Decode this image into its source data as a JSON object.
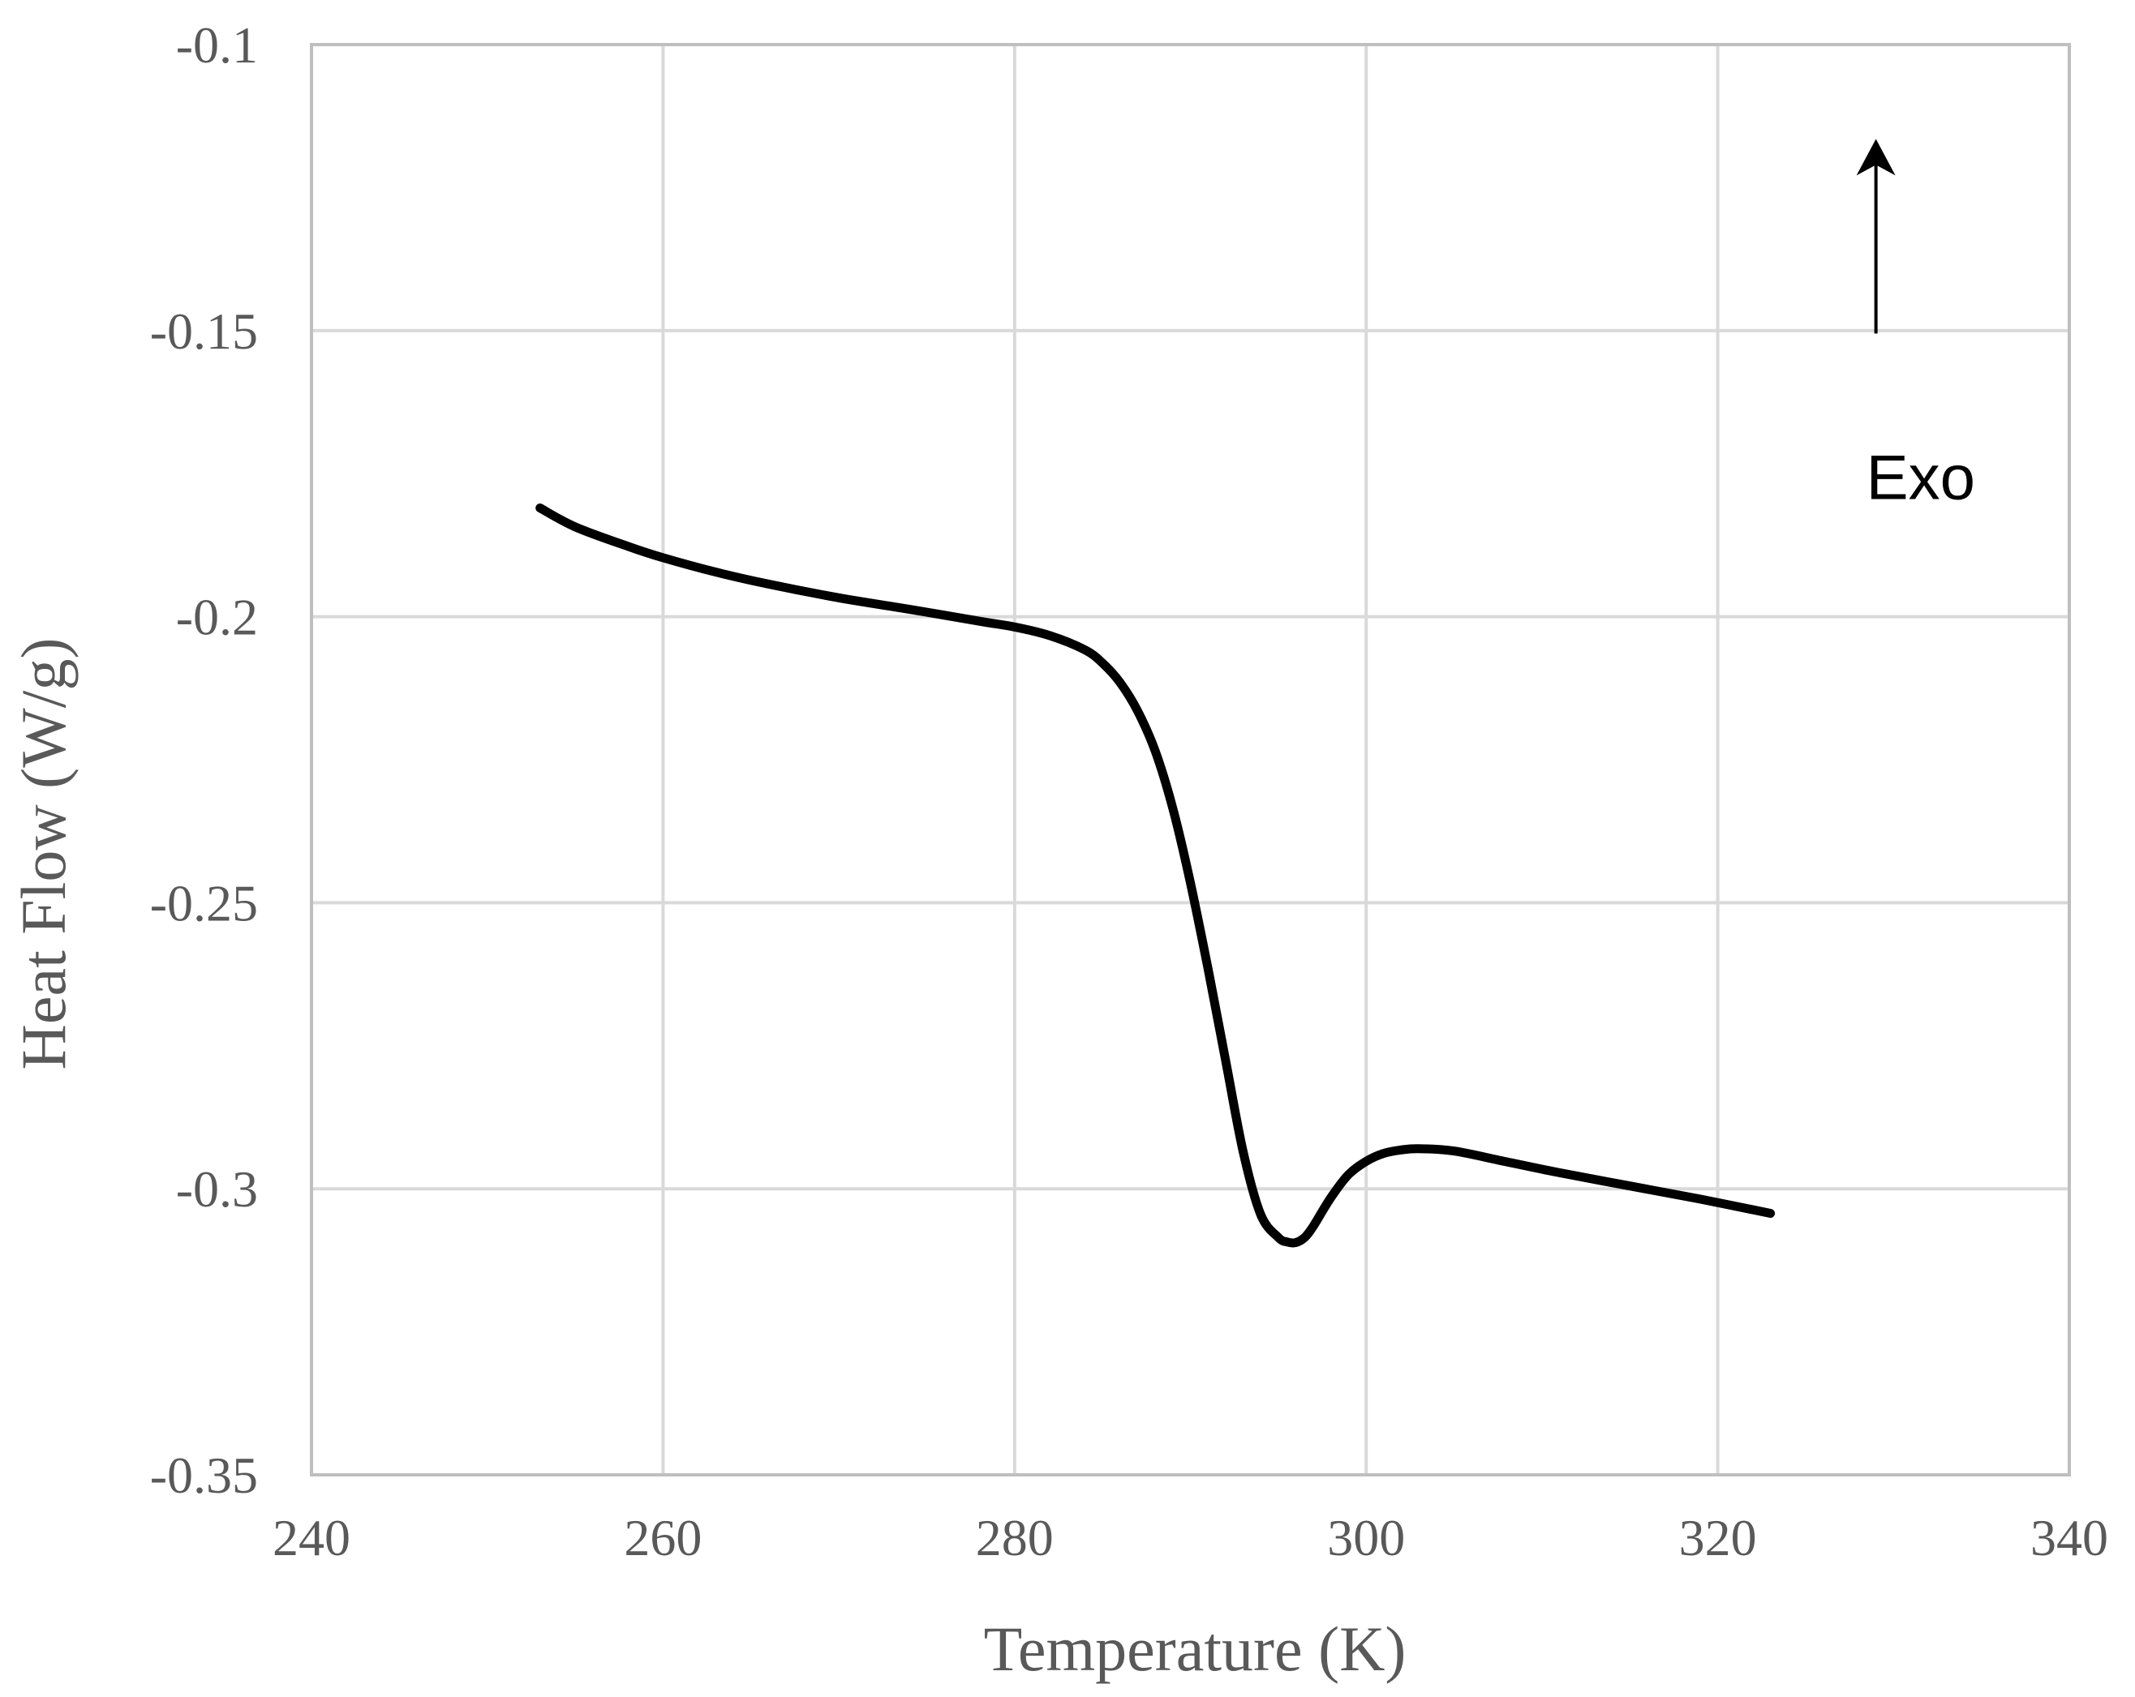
{
  "chart_data": {
    "type": "line",
    "title": "",
    "xlabel": "Temperature (K)",
    "ylabel": "Heat Flow (W/g)",
    "xlim": [
      240,
      340
    ],
    "ylim": [
      -0.35,
      -0.1
    ],
    "grid": true,
    "x_ticks": [
      240,
      260,
      280,
      300,
      320,
      340
    ],
    "y_ticks": [
      -0.35,
      -0.3,
      -0.25,
      -0.2,
      -0.15,
      -0.1
    ],
    "x_tick_labels": [
      "240",
      "260",
      "280",
      "300",
      "320",
      "340"
    ],
    "y_tick_labels": [
      "-0.35",
      "-0.3",
      "-0.25",
      "-0.2",
      "-0.15",
      "-0.1"
    ],
    "series": [
      {
        "name": "Heat Flow",
        "color": "#000000",
        "x": [
          253,
          255,
          258,
          260,
          263,
          266,
          270,
          274,
          278,
          280,
          282,
          284,
          285,
          286,
          287,
          288,
          289,
          290,
          291,
          292,
          293,
          294,
          295,
          295.5,
          296,
          296.5,
          297,
          298,
          299,
          300,
          301,
          302,
          303,
          305,
          308,
          311,
          315,
          319,
          323
        ],
        "y": [
          -0.181,
          -0.1843,
          -0.1877,
          -0.1897,
          -0.1922,
          -0.1943,
          -0.1967,
          -0.1987,
          -0.2008,
          -0.2018,
          -0.2033,
          -0.2058,
          -0.2081,
          -0.2115,
          -0.2165,
          -0.2235,
          -0.2335,
          -0.2465,
          -0.2615,
          -0.2775,
          -0.2935,
          -0.3045,
          -0.3085,
          -0.3093,
          -0.3094,
          -0.3085,
          -0.3065,
          -0.3015,
          -0.2975,
          -0.2952,
          -0.2938,
          -0.2932,
          -0.293,
          -0.2934,
          -0.2953,
          -0.2972,
          -0.2995,
          -0.3018,
          -0.3043
        ]
      }
    ],
    "annotations": [
      {
        "text": "Exo",
        "x": 329,
        "y": -0.1755
      }
    ],
    "arrow": {
      "x": 329,
      "y_from": -0.1505,
      "y_to": -0.1165
    }
  }
}
